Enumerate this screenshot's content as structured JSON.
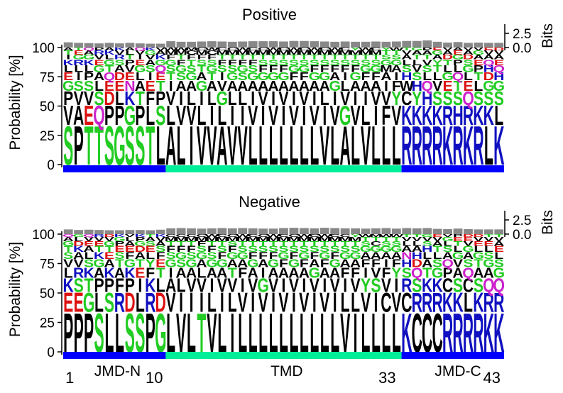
{
  "chart_data": [
    {
      "type": "sequence-logo",
      "title": "Positive",
      "ylabel": "Probability [%]",
      "right_ylabel": "Bits",
      "yticks": [
        0,
        25,
        50,
        75,
        100
      ],
      "right_yticks": [
        "0.0",
        "2.5"
      ],
      "ylim": [
        0,
        100
      ],
      "positions": 43,
      "segments": [
        {
          "label": "JMD-N",
          "start": 1,
          "end": 10,
          "color": "#0000ff"
        },
        {
          "label": "TMD",
          "start": 11,
          "end": 33,
          "color": "#00ee99"
        },
        {
          "label": "JMD-C",
          "start": 34,
          "end": 43,
          "color": "#0000ff"
        }
      ],
      "columns": [
        [
          "S",
          "V",
          "P",
          "G",
          "E",
          "L",
          "K",
          "I",
          "T",
          "A"
        ],
        [
          "P",
          "A",
          "V",
          "S",
          "I",
          "L",
          "R",
          "G",
          "E",
          "T"
        ],
        [
          "T",
          "E",
          "V",
          "S",
          "P",
          "L",
          "K",
          "G",
          "A",
          "Q"
        ],
        [
          "T",
          "Q",
          "S",
          "L",
          "A",
          "G",
          "E",
          "V",
          "R",
          "P"
        ],
        [
          "S",
          "P",
          "D",
          "E",
          "Q",
          "T",
          "G",
          "L",
          "K",
          "A"
        ],
        [
          "G",
          "P",
          "L",
          "E",
          "D",
          "A",
          "S",
          "R",
          "V",
          "K"
        ],
        [
          "S",
          "G",
          "K",
          "N",
          "E",
          "V",
          "P",
          "T",
          "L",
          "A"
        ],
        [
          "S",
          "P",
          "T",
          "A",
          "L",
          "G",
          "E",
          "I",
          "V",
          "Q"
        ],
        [
          "T",
          "L",
          "F",
          "E",
          "I",
          "S",
          "A",
          "V",
          "G",
          "K"
        ],
        [
          "L",
          "S",
          "P",
          "T",
          "E",
          "Q",
          "G",
          "K",
          "A",
          "V"
        ],
        [
          "A",
          "L",
          "V",
          "I",
          "T",
          "S",
          "G",
          "F",
          "M",
          "W"
        ],
        [
          "L",
          "V",
          "I",
          "A",
          "S",
          "G",
          "F",
          "T",
          "M",
          "W"
        ],
        [
          "I",
          "V",
          "L",
          "A",
          "G",
          "S",
          "T",
          "F",
          "C",
          "M"
        ],
        [
          "V",
          "L",
          "I",
          "G",
          "A",
          "T",
          "S",
          "F",
          "M",
          "C"
        ],
        [
          "V",
          "I",
          "L",
          "A",
          "T",
          "G",
          "S",
          "F",
          "C",
          "W"
        ],
        [
          "A",
          "L",
          "G",
          "V",
          "I",
          "S",
          "F",
          "T",
          "M",
          "C"
        ],
        [
          "V",
          "I",
          "L",
          "A",
          "G",
          "S",
          "F",
          "T",
          "M",
          "C"
        ],
        [
          "V",
          "I",
          "L",
          "A",
          "S",
          "G",
          "F",
          "T",
          "M",
          "W"
        ],
        [
          "L",
          "V",
          "I",
          "A",
          "G",
          "S",
          "F",
          "T",
          "M",
          "C"
        ],
        [
          "L",
          "I",
          "V",
          "A",
          "G",
          "F",
          "S",
          "T",
          "M",
          "C"
        ],
        [
          "L",
          "V",
          "I",
          "A",
          "G",
          "F",
          "S",
          "T",
          "M",
          "W"
        ],
        [
          "L",
          "I",
          "V",
          "A",
          "G",
          "F",
          "S",
          "T",
          "M",
          "C"
        ],
        [
          "L",
          "V",
          "I",
          "A",
          "F",
          "G",
          "S",
          "T",
          "M",
          "W"
        ],
        [
          "L",
          "I",
          "V",
          "A",
          "F",
          "G",
          "S",
          "T",
          "M",
          "C"
        ],
        [
          "L",
          "V",
          "I",
          "A",
          "G",
          "F",
          "S",
          "T",
          "M",
          "W"
        ],
        [
          "V",
          "I",
          "L",
          "A",
          "G",
          "F",
          "S",
          "T",
          "M",
          "C"
        ],
        [
          "L",
          "V",
          "I",
          "G",
          "A",
          "F",
          "S",
          "T",
          "M",
          "W"
        ],
        [
          "A",
          "G",
          "V",
          "L",
          "I",
          "F",
          "S",
          "T",
          "M",
          "C"
        ],
        [
          "L",
          "V",
          "I",
          "A",
          "G",
          "F",
          "S",
          "T",
          "M",
          "Y"
        ],
        [
          "V",
          "L",
          "I",
          "A",
          "F",
          "G",
          "S",
          "T",
          "M",
          "W"
        ],
        [
          "L",
          "I",
          "V",
          "A",
          "F",
          "G",
          "S",
          "T",
          "M",
          "C"
        ],
        [
          "L",
          "F",
          "V",
          "I",
          "A",
          "M",
          "G",
          "S",
          "T",
          "Y"
        ],
        [
          "L",
          "V",
          "Y",
          "F",
          "I",
          "A",
          "G",
          "S",
          "T",
          "W"
        ],
        [
          "R",
          "K",
          "C",
          "W",
          "H",
          "S",
          "L",
          "A",
          "V",
          "T"
        ],
        [
          "R",
          "K",
          "Y",
          "H",
          "S",
          "V",
          "L",
          "T",
          "A",
          "G"
        ],
        [
          "R",
          "K",
          "H",
          "Q",
          "L",
          "S",
          "V",
          "T",
          "A",
          "P"
        ],
        [
          "R",
          "K",
          "S",
          "V",
          "L",
          "T",
          "Y",
          "A",
          "G",
          "E"
        ],
        [
          "K",
          "R",
          "S",
          "E",
          "G",
          "L",
          "T",
          "D",
          "A",
          "V"
        ],
        [
          "R",
          "H",
          "S",
          "T",
          "Q",
          "L",
          "P",
          "G",
          "E",
          "A"
        ],
        [
          "K",
          "R",
          "Q",
          "E",
          "L",
          "G",
          "S",
          "D",
          "A",
          "V"
        ],
        [
          "R",
          "K",
          "S",
          "L",
          "T",
          "P",
          "E",
          "A",
          "G",
          "V"
        ],
        [
          "L",
          "K",
          "S",
          "G",
          "D",
          "H",
          "Q",
          "A",
          "V",
          "E"
        ],
        [
          "K",
          "L",
          "S",
          "G",
          "H",
          "Q",
          "E",
          "A",
          "V",
          "D"
        ]
      ],
      "bits": [
        1.4,
        1.2,
        1.1,
        1.0,
        1.2,
        1.0,
        1.2,
        1.0,
        0.9,
        0.9,
        1.8,
        1.6,
        1.6,
        1.7,
        1.8,
        1.7,
        1.6,
        1.7,
        1.8,
        1.8,
        1.8,
        1.7,
        1.9,
        1.9,
        1.8,
        1.7,
        1.6,
        1.7,
        1.6,
        1.6,
        1.7,
        1.6,
        1.7,
        1.9,
        1.9,
        2.1,
        1.6,
        1.3,
        1.5,
        1.2,
        1.3,
        1.2,
        1.2
      ]
    },
    {
      "type": "sequence-logo",
      "title": "Negative",
      "ylabel": "Probability [%]",
      "right_ylabel": "Bits",
      "yticks": [
        0,
        25,
        50,
        75,
        100
      ],
      "right_yticks": [
        "0.0",
        "2.5"
      ],
      "ylim": [
        0,
        100
      ],
      "positions": 43,
      "xticks": [
        1,
        10,
        33,
        43
      ],
      "segments": [
        {
          "label": "JMD-N",
          "start": 1,
          "end": 10,
          "color": "#0000ff"
        },
        {
          "label": "TMD",
          "start": 11,
          "end": 33,
          "color": "#00ee99"
        },
        {
          "label": "JMD-C",
          "start": 34,
          "end": 43,
          "color": "#0000ff"
        }
      ],
      "columns": [
        [
          "P",
          "E",
          "K",
          "L",
          "V",
          "S",
          "T",
          "G",
          "A",
          "Q"
        ],
        [
          "P",
          "E",
          "S",
          "R",
          "V",
          "A",
          "K",
          "D",
          "L",
          "G"
        ],
        [
          "P",
          "G",
          "T",
          "K",
          "S",
          "L",
          "A",
          "E",
          "V",
          "Q"
        ],
        [
          "S",
          "L",
          "P",
          "A",
          "G",
          "K",
          "T",
          "E",
          "V",
          "R"
        ],
        [
          "L",
          "S",
          "P",
          "K",
          "A",
          "E",
          "T",
          "G",
          "V",
          "D"
        ],
        [
          "L",
          "R",
          "F",
          "A",
          "T",
          "S",
          "E",
          "P",
          "G",
          "K"
        ],
        [
          "S",
          "D",
          "P",
          "K",
          "G",
          "F",
          "E",
          "A",
          "L",
          "V"
        ],
        [
          "S",
          "L",
          "I",
          "E",
          "T",
          "A",
          "D",
          "G",
          "P",
          "K"
        ],
        [
          "P",
          "R",
          "K",
          "F",
          "Y",
          "L",
          "E",
          "S",
          "A",
          "T"
        ],
        [
          "G",
          "D",
          "L",
          "T",
          "E",
          "F",
          "S",
          "A",
          "V",
          "K"
        ],
        [
          "L",
          "V",
          "A",
          "I",
          "G",
          "S",
          "F",
          "T",
          "M",
          "C"
        ],
        [
          "V",
          "I",
          "L",
          "A",
          "S",
          "G",
          "F",
          "T",
          "M",
          "C"
        ],
        [
          "L",
          "I",
          "V",
          "A",
          "G",
          "S",
          "F",
          "T",
          "M",
          "C"
        ],
        [
          "T",
          "I",
          "V",
          "L",
          "A",
          "G",
          "S",
          "F",
          "M",
          "C"
        ],
        [
          "V",
          "L",
          "I",
          "A",
          "G",
          "S",
          "F",
          "T",
          "M",
          "W"
        ],
        [
          "L",
          "I",
          "V",
          "A",
          "G",
          "F",
          "S",
          "T",
          "M",
          "C"
        ],
        [
          "I",
          "L",
          "V",
          "T",
          "A",
          "G",
          "F",
          "S",
          "M",
          "C"
        ],
        [
          "L",
          "V",
          "I",
          "F",
          "A",
          "G",
          "S",
          "T",
          "M",
          "W"
        ],
        [
          "L",
          "I",
          "V",
          "A",
          "G",
          "F",
          "S",
          "T",
          "M",
          "C"
        ],
        [
          "L",
          "V",
          "G",
          "I",
          "A",
          "F",
          "S",
          "T",
          "M",
          "C"
        ],
        [
          "L",
          "I",
          "V",
          "A",
          "G",
          "F",
          "S",
          "T",
          "M",
          "W"
        ],
        [
          "L",
          "V",
          "I",
          "A",
          "F",
          "G",
          "S",
          "T",
          "M",
          "C"
        ],
        [
          "L",
          "I",
          "V",
          "A",
          "G",
          "F",
          "S",
          "T",
          "M",
          "C"
        ],
        [
          "L",
          "V",
          "I",
          "A",
          "F",
          "G",
          "S",
          "T",
          "M",
          "W"
        ],
        [
          "L",
          "I",
          "V",
          "G",
          "A",
          "F",
          "S",
          "T",
          "M",
          "C"
        ],
        [
          "L",
          "V",
          "I",
          "A",
          "F",
          "G",
          "S",
          "T",
          "M",
          "W"
        ],
        [
          "L",
          "I",
          "V",
          "A",
          "G",
          "F",
          "S",
          "T",
          "M",
          "C"
        ],
        [
          "V",
          "L",
          "I",
          "F",
          "A",
          "G",
          "S",
          "T",
          "M",
          "C"
        ],
        [
          "I",
          "L",
          "V",
          "F",
          "A",
          "G",
          "S",
          "T",
          "M",
          "Y"
        ],
        [
          "L",
          "V",
          "Y",
          "I",
          "F",
          "A",
          "G",
          "S",
          "T",
          "W"
        ],
        [
          "L",
          "I",
          "S",
          "V",
          "F",
          "A",
          "G",
          "C",
          "T",
          "M"
        ],
        [
          "L",
          "C",
          "V",
          "F",
          "I",
          "A",
          "G",
          "S",
          "T",
          "W"
        ],
        [
          "L",
          "V",
          "I",
          "Y",
          "F",
          "A",
          "G",
          "S",
          "T",
          "W"
        ],
        [
          "K",
          "C",
          "R",
          "S",
          "H",
          "N",
          "A",
          "L",
          "V",
          "T"
        ],
        [
          "C",
          "R",
          "S",
          "Q",
          "D",
          "H",
          "A",
          "L",
          "V",
          "T"
        ],
        [
          "C",
          "R",
          "K",
          "T",
          "A",
          "L",
          "H",
          "S",
          "V",
          "G"
        ],
        [
          "C",
          "R",
          "K",
          "G",
          "S",
          "L",
          "T",
          "A",
          "V",
          "E"
        ],
        [
          "R",
          "K",
          "C",
          "P",
          "Q",
          "A",
          "S",
          "L",
          "G",
          "V"
        ],
        [
          "R",
          "K",
          "S",
          "A",
          "V",
          "G",
          "L",
          "T",
          "E",
          "P"
        ],
        [
          "R",
          "L",
          "C",
          "Q",
          "S",
          "A",
          "G",
          "V",
          "E",
          "D"
        ],
        [
          "R",
          "K",
          "S",
          "A",
          "T",
          "G",
          "L",
          "E",
          "V",
          "D"
        ],
        [
          "K",
          "R",
          "Q",
          "A",
          "G",
          "S",
          "L",
          "E",
          "V",
          "T"
        ],
        [
          "K",
          "R",
          "Q",
          "G",
          "S",
          "L",
          "E",
          "A",
          "V",
          "T"
        ]
      ],
      "bits": [
        1.2,
        1.0,
        1.1,
        1.0,
        0.9,
        0.9,
        1.0,
        1.0,
        0.9,
        1.1,
        1.6,
        1.7,
        1.6,
        1.5,
        1.6,
        1.7,
        1.6,
        1.7,
        1.6,
        1.5,
        1.5,
        1.7,
        1.8,
        1.7,
        1.6,
        1.8,
        1.7,
        1.6,
        1.6,
        1.5,
        1.6,
        1.7,
        1.5,
        1.7,
        1.6,
        1.7,
        1.4,
        1.3,
        1.5,
        1.3,
        1.2,
        1.2,
        1.2
      ]
    }
  ],
  "segment_labels": [
    "JMD-N",
    "TMD",
    "JMD-C"
  ],
  "colors": {
    "hydrophobic": "#000000",
    "polar_neutral": "#22cc22",
    "basic": "#1010c0",
    "acidic": "#dd1010",
    "amide": "#cc22cc",
    "bits_bar": "#888888",
    "jmd_bar": "#0000ff",
    "tmd_bar": "#00ee99"
  }
}
